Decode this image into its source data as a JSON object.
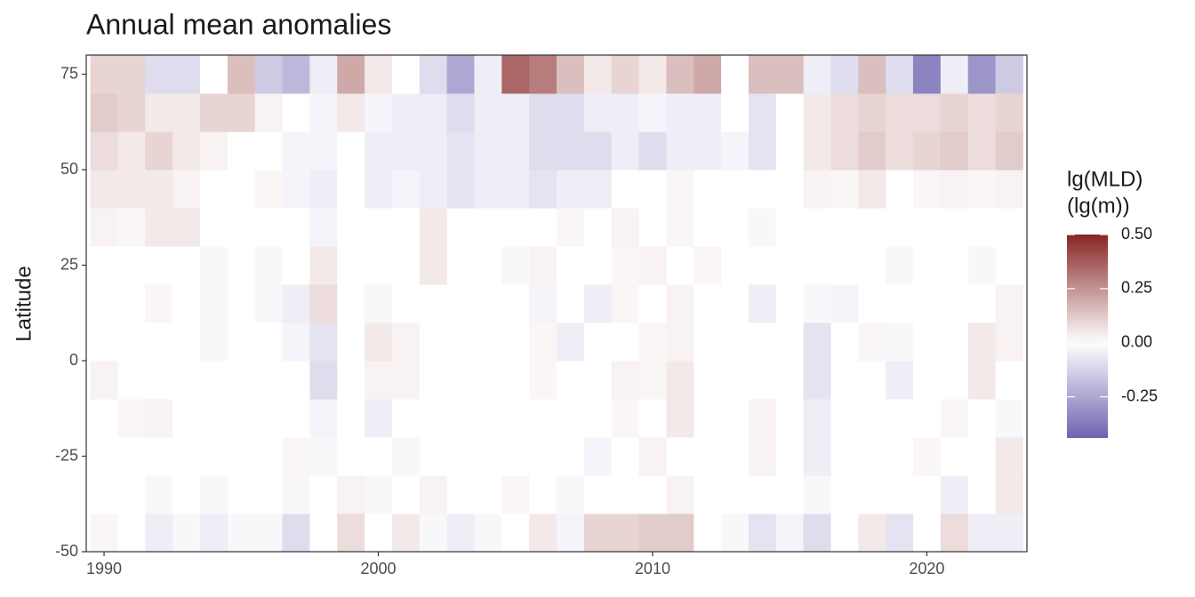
{
  "chart_data": {
    "type": "heatmap",
    "title": "Annual mean anomalies",
    "y_label": "Latitude",
    "x": [
      1990,
      1991,
      1992,
      1993,
      1994,
      1995,
      1996,
      1997,
      1998,
      1999,
      2000,
      2001,
      2002,
      2003,
      2004,
      2005,
      2006,
      2007,
      2008,
      2009,
      2010,
      2011,
      2012,
      2013,
      2014,
      2015,
      2016,
      2017,
      2018,
      2019,
      2020,
      2021,
      2022,
      2023
    ],
    "y": [
      -45,
      -35,
      -25,
      -15,
      -5,
      5,
      15,
      25,
      35,
      45,
      55,
      65,
      75
    ],
    "values": [
      [
        0.02,
        0,
        -0.05,
        -0.02,
        -0.05,
        -0.02,
        -0.02,
        -0.1,
        0,
        0.08,
        0,
        0.05,
        -0.02,
        -0.05,
        -0.02,
        0,
        0.05,
        -0.03,
        0.1,
        0.1,
        0.12,
        0.12,
        0,
        -0.02,
        -0.08,
        -0.03,
        -0.1,
        0,
        0.05,
        -0.08,
        0,
        0.08,
        -0.05,
        -0.05
      ],
      [
        0,
        0,
        -0.02,
        0,
        -0.02,
        0,
        0,
        -0.02,
        0,
        0.03,
        -0.02,
        0,
        0.03,
        0,
        0,
        0.02,
        0,
        -0.02,
        0,
        0,
        0,
        0.03,
        0,
        0,
        0,
        0,
        -0.02,
        0,
        0,
        0,
        0,
        -0.05,
        0,
        0.05
      ],
      [
        0,
        0,
        0,
        0,
        0,
        0,
        0,
        0.02,
        -0.02,
        0,
        0,
        -0.02,
        0,
        0,
        0,
        0,
        0,
        0,
        -0.03,
        0,
        0.03,
        0,
        0,
        0,
        0.03,
        0,
        -0.05,
        0,
        0,
        0,
        0.02,
        0,
        0,
        0.05
      ],
      [
        0,
        0.02,
        0.03,
        0,
        0,
        0,
        0,
        0,
        -0.03,
        0,
        -0.05,
        0,
        0,
        0,
        0,
        0,
        0,
        0,
        0,
        0.02,
        0,
        0.05,
        0,
        0,
        0.03,
        0,
        -0.05,
        0,
        0,
        0,
        0,
        0.02,
        0,
        -0.02
      ],
      [
        0.03,
        0,
        0,
        0,
        0,
        0,
        0,
        0,
        -0.1,
        0,
        0.03,
        0.03,
        0,
        0,
        0,
        0,
        0.02,
        0,
        0,
        0.03,
        0.02,
        0.05,
        0,
        0,
        0,
        0,
        -0.08,
        0,
        0,
        -0.05,
        0,
        0,
        0.05,
        0
      ],
      [
        0,
        0,
        0,
        0,
        -0.02,
        0,
        0,
        -0.03,
        -0.08,
        0,
        0.05,
        0.03,
        0,
        0,
        0,
        0,
        0.02,
        -0.05,
        0,
        0,
        0.02,
        0.03,
        0,
        0,
        0,
        0,
        -0.08,
        0,
        0.02,
        -0.02,
        0,
        0,
        0.05,
        0.03
      ],
      [
        0,
        0,
        0.02,
        0,
        -0.02,
        0,
        -0.02,
        -0.05,
        0.08,
        0,
        -0.02,
        0,
        0,
        0,
        0,
        0,
        -0.03,
        0,
        -0.05,
        0.02,
        0,
        0.03,
        0,
        0,
        -0.05,
        0,
        -0.02,
        -0.03,
        0,
        0,
        0,
        0,
        0,
        0.03
      ],
      [
        0,
        0,
        0,
        0,
        -0.02,
        0,
        -0.02,
        0,
        0.05,
        0,
        0,
        0,
        0.05,
        0,
        0,
        -0.02,
        0.03,
        0,
        0,
        0.02,
        0.03,
        0,
        0.02,
        0,
        0,
        0,
        0,
        0,
        0,
        -0.02,
        0,
        0,
        -0.02,
        0
      ],
      [
        0.03,
        0.02,
        0.05,
        0.05,
        0,
        0,
        0,
        0,
        -0.03,
        0,
        0,
        0,
        0.05,
        0,
        0,
        0,
        0,
        0.02,
        0,
        0.03,
        0,
        0.02,
        0,
        0,
        -0.02,
        0,
        0,
        0,
        0,
        0,
        0,
        0,
        0,
        0
      ],
      [
        0.05,
        0.05,
        0.05,
        0.03,
        0,
        0,
        0.02,
        -0.03,
        -0.05,
        0,
        -0.05,
        -0.03,
        -0.05,
        -0.08,
        -0.05,
        -0.05,
        -0.08,
        -0.05,
        -0.05,
        0,
        0,
        0.02,
        0,
        0,
        0,
        0,
        0.03,
        0.02,
        0.05,
        0,
        0.02,
        0.03,
        0.02,
        0.03
      ],
      [
        0.08,
        0.05,
        0.1,
        0.05,
        0.03,
        0,
        0,
        -0.03,
        -0.03,
        0,
        -0.05,
        -0.05,
        -0.05,
        -0.08,
        -0.05,
        -0.05,
        -0.1,
        -0.1,
        -0.1,
        -0.05,
        -0.1,
        -0.05,
        -0.05,
        -0.03,
        -0.08,
        0,
        0.05,
        0.08,
        0.12,
        0.08,
        0.1,
        0.12,
        0.08,
        0.12
      ],
      [
        0.12,
        0.1,
        0.05,
        0.05,
        0.1,
        0.1,
        0.03,
        0,
        -0.03,
        0.05,
        -0.03,
        -0.05,
        -0.05,
        -0.1,
        -0.05,
        -0.05,
        -0.1,
        -0.1,
        -0.05,
        -0.05,
        -0.03,
        -0.05,
        -0.05,
        0,
        -0.08,
        0,
        0.05,
        0.08,
        0.1,
        0.08,
        0.08,
        0.1,
        0.08,
        0.1
      ],
      [
        0.1,
        0.1,
        -0.1,
        -0.1,
        0,
        0.15,
        -0.15,
        -0.2,
        -0.05,
        0.2,
        0.05,
        0,
        -0.1,
        -0.25,
        -0.05,
        0.35,
        0.3,
        0.15,
        0.05,
        0.1,
        0.05,
        0.15,
        0.2,
        0,
        0.15,
        0.15,
        -0.05,
        -0.1,
        0.15,
        -0.1,
        -0.35,
        -0.05,
        -0.3,
        -0.15
      ]
    ],
    "xlim": [
      1989.35,
      2023.65
    ],
    "ylim": [
      -50,
      80
    ],
    "xticks": [
      1990,
      2000,
      2010,
      2020
    ],
    "yticks": [
      -50,
      -25,
      0,
      25,
      50,
      75
    ],
    "legend_title": [
      "lg(MLD)",
      "(lg(m))"
    ],
    "colorlim": [
      -0.44,
      0.5
    ],
    "colorticks": [
      {
        "value": 0.5,
        "label": "0.50"
      },
      {
        "value": 0.25,
        "label": "0.25"
      },
      {
        "value": 0,
        "label": "0.00"
      },
      {
        "value": -0.25,
        "label": "-0.25"
      }
    ],
    "colors": {
      "low": "#5a4ea6",
      "mid": "#ffffff",
      "high": "#862625"
    }
  }
}
